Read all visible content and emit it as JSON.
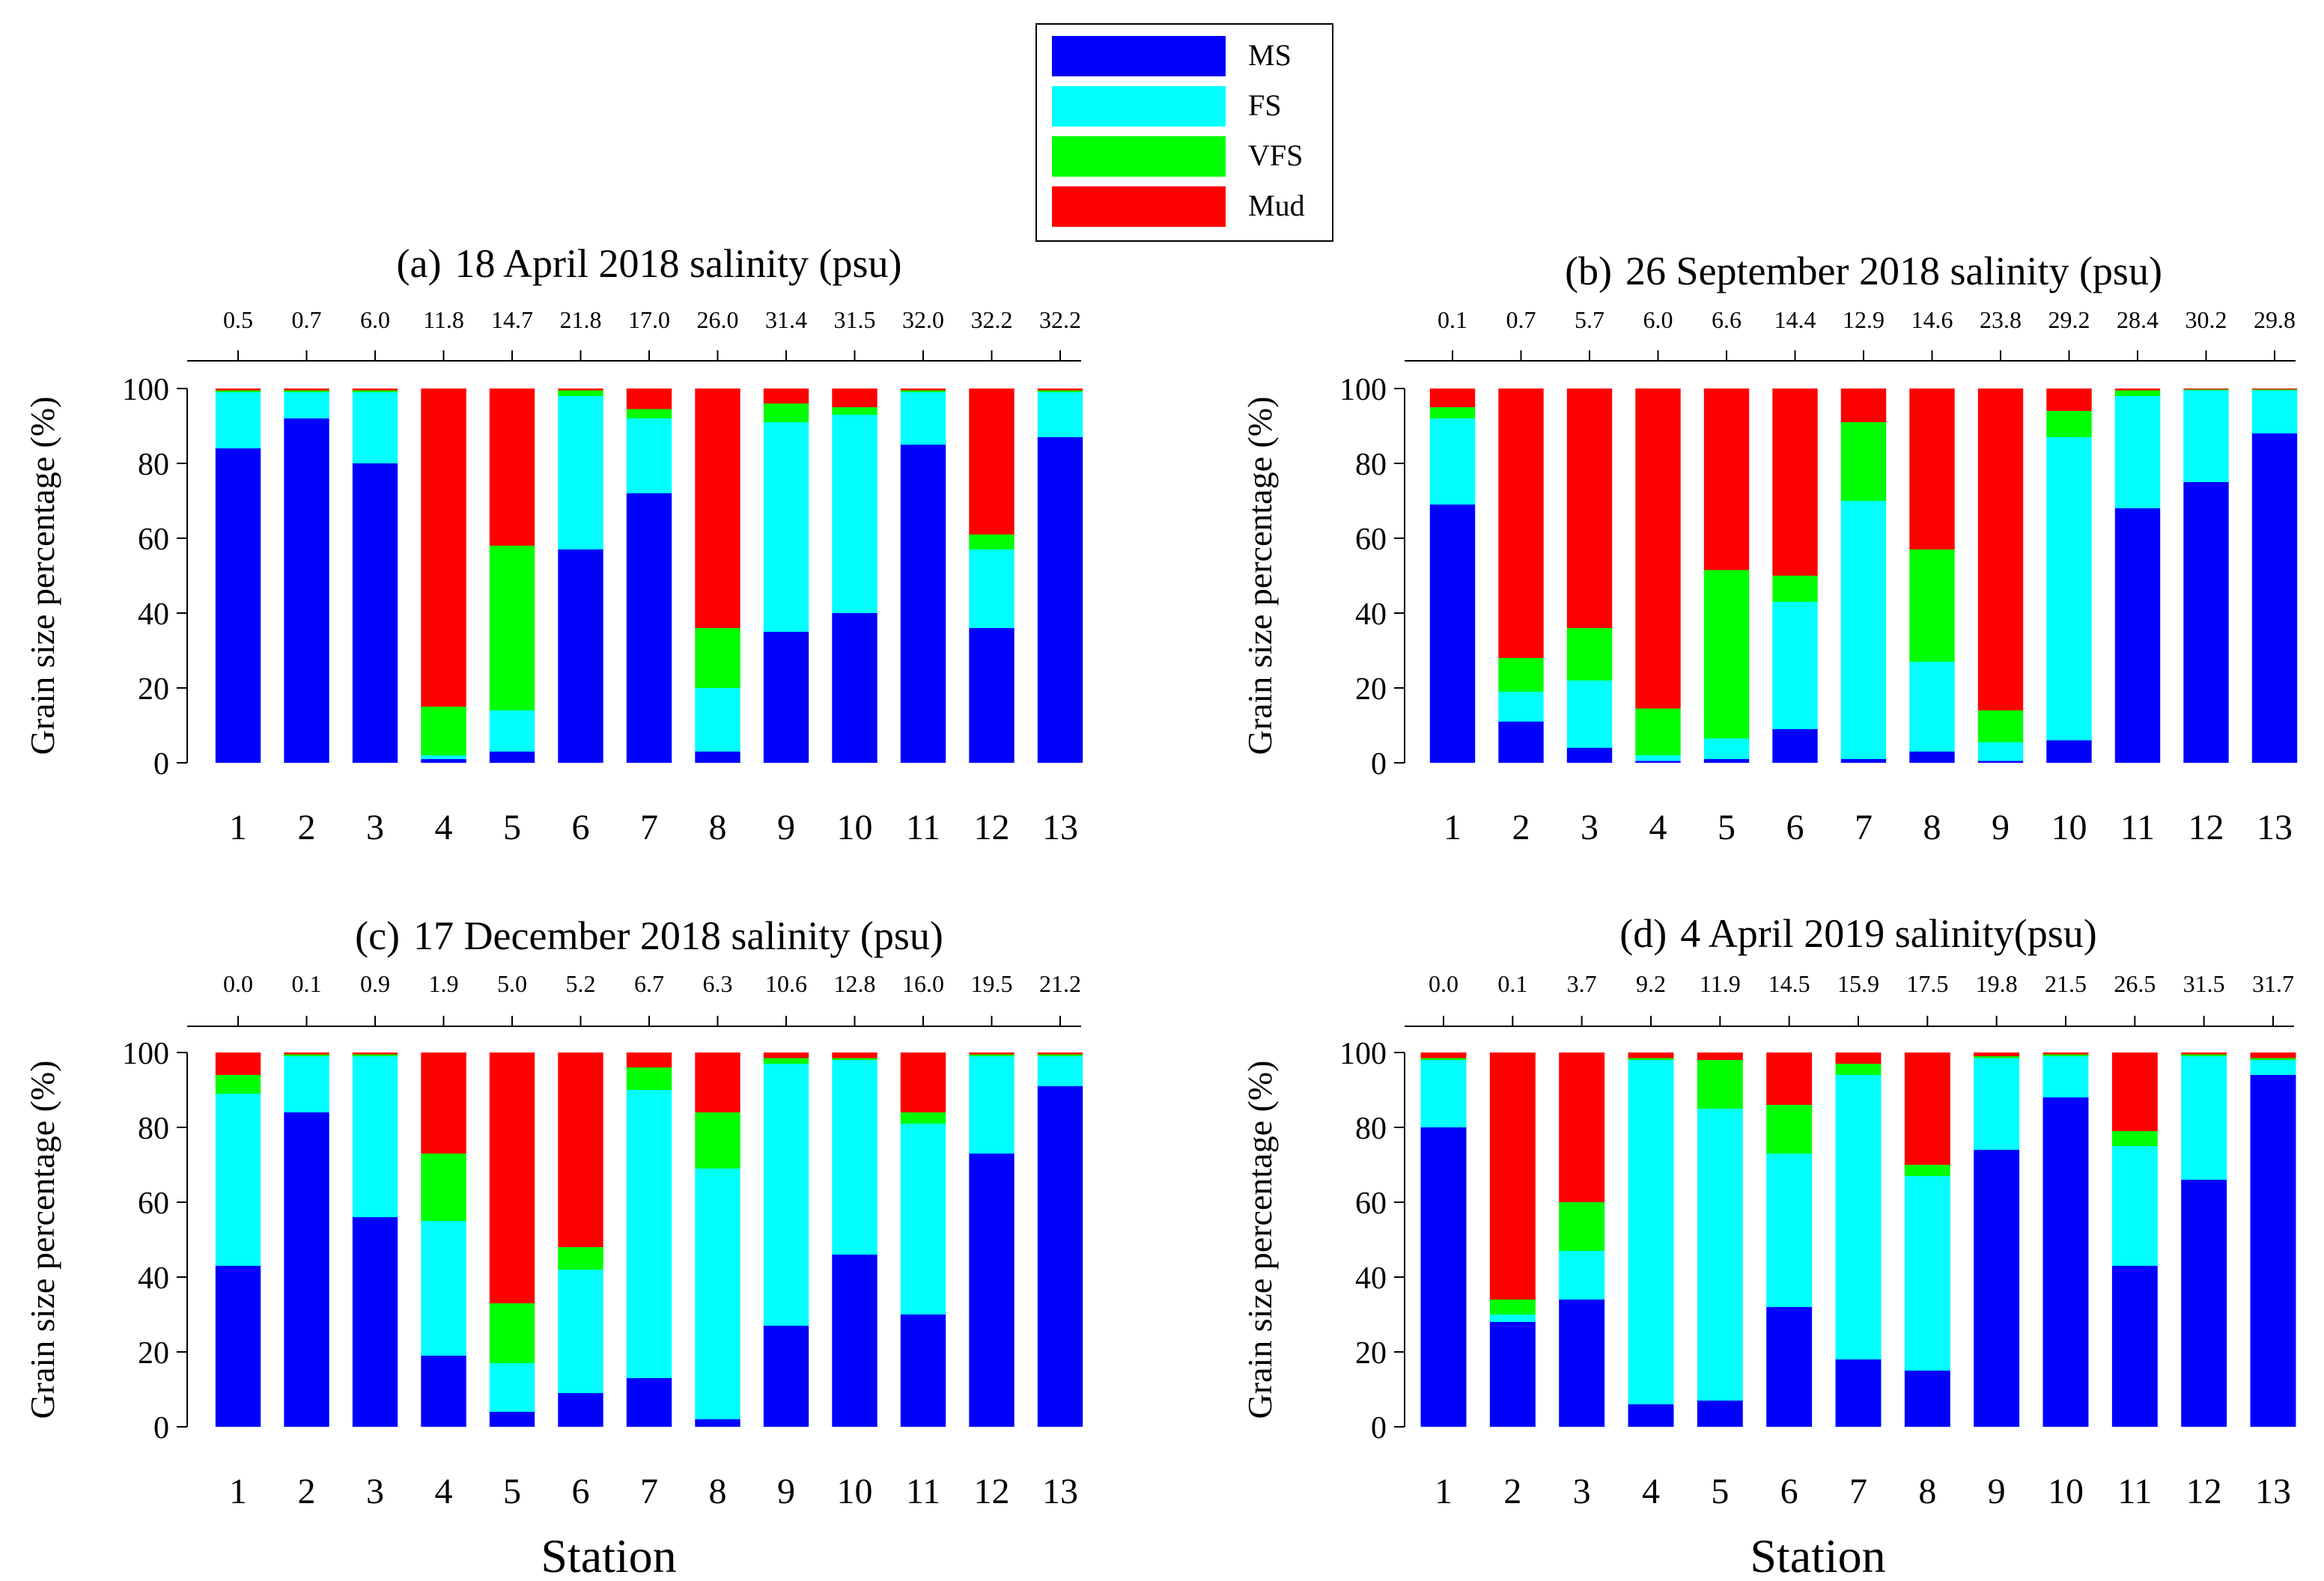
{
  "legend": {
    "items": [
      {
        "label": "MS",
        "color": "#0000ff"
      },
      {
        "label": "FS",
        "color": "#00ffff"
      },
      {
        "label": "VFS",
        "color": "#00ff00"
      },
      {
        "label": "Mud",
        "color": "#ff0000"
      }
    ]
  },
  "shared": {
    "ylabel": "Grain size percentage (%)",
    "xlabel": "Station",
    "yticks": [
      "0",
      "20",
      "40",
      "60",
      "80",
      "100"
    ],
    "stations": [
      "1",
      "2",
      "3",
      "4",
      "5",
      "6",
      "7",
      "8",
      "9",
      "10",
      "11",
      "12",
      "13"
    ]
  },
  "chart_data": [
    {
      "type": "bar",
      "stacked": true,
      "panel": "(a)",
      "title": "18 April 2018 salinity (psu)",
      "xlabel": "",
      "ylabel": "Grain size percentage (%)",
      "ylim": [
        0,
        100
      ],
      "categories": [
        "1",
        "2",
        "3",
        "4",
        "5",
        "6",
        "7",
        "8",
        "9",
        "10",
        "11",
        "12",
        "13"
      ],
      "secondary_x_labels": [
        "0.5",
        "0.7",
        "6.0",
        "11.8",
        "14.7",
        "21.8",
        "17.0",
        "26.0",
        "31.4",
        "31.5",
        "32.0",
        "32.2",
        "32.2"
      ],
      "series": [
        {
          "name": "MS",
          "values": [
            84,
            92,
            80,
            1,
            3,
            57,
            72,
            3,
            35,
            40,
            85,
            36,
            87
          ]
        },
        {
          "name": "FS",
          "values": [
            15,
            7,
            19,
            1,
            11,
            41,
            20,
            17,
            56,
            53,
            14,
            21,
            12
          ]
        },
        {
          "name": "VFS",
          "values": [
            0.5,
            0.5,
            0.5,
            13,
            44,
            1.5,
            2.5,
            16,
            5,
            2,
            0.5,
            4,
            0.5
          ]
        },
        {
          "name": "Mud",
          "values": [
            0.5,
            0.5,
            0.5,
            85,
            42,
            0.5,
            5.5,
            64,
            4,
            5,
            0.5,
            39,
            0.5
          ]
        }
      ]
    },
    {
      "type": "bar",
      "stacked": true,
      "panel": "(b)",
      "title": "26 September 2018  salinity (psu)",
      "xlabel": "",
      "ylabel": "Grain size percentage (%)",
      "ylim": [
        0,
        100
      ],
      "categories": [
        "1",
        "2",
        "3",
        "4",
        "5",
        "6",
        "7",
        "8",
        "9",
        "10",
        "11",
        "12",
        "13"
      ],
      "secondary_x_labels": [
        "0.1",
        "0.7",
        "5.7",
        "6.0",
        "6.6",
        "14.4",
        "12.9",
        "14.6",
        "23.8",
        "29.2",
        "28.4",
        "30.2",
        "29.8"
      ],
      "series": [
        {
          "name": "MS",
          "values": [
            69,
            11,
            4,
            0.5,
            1,
            9,
            1,
            3,
            0.5,
            6,
            68,
            75,
            88
          ]
        },
        {
          "name": "FS",
          "values": [
            23,
            8,
            18,
            1.5,
            5.5,
            34,
            69,
            24,
            5,
            81,
            30,
            24.5,
            11.5
          ]
        },
        {
          "name": "VFS",
          "values": [
            3,
            9,
            14,
            12.5,
            45,
            7,
            21,
            30,
            8.5,
            7,
            1.5,
            0.25,
            0.25
          ]
        },
        {
          "name": "Mud",
          "values": [
            5,
            72,
            64,
            85.5,
            48.5,
            50,
            9,
            43,
            86,
            6,
            0.5,
            0.25,
            0.25
          ]
        }
      ]
    },
    {
      "type": "bar",
      "stacked": true,
      "panel": "(c)",
      "title": "17 December 2018 salinity (psu)",
      "xlabel": "Station",
      "ylabel": "Grain size percentage (%)",
      "ylim": [
        0,
        100
      ],
      "categories": [
        "1",
        "2",
        "3",
        "4",
        "5",
        "6",
        "7",
        "8",
        "9",
        "10",
        "11",
        "12",
        "13"
      ],
      "secondary_x_labels": [
        "0.0",
        "0.1",
        "0.9",
        "1.9",
        "5.0",
        "5.2",
        "6.7",
        "6.3",
        "10.6",
        "12.8",
        "16.0",
        "19.5",
        "21.2"
      ],
      "series": [
        {
          "name": "MS",
          "values": [
            43,
            84,
            56,
            19,
            4,
            9,
            13,
            2,
            27,
            46,
            30,
            73,
            91
          ]
        },
        {
          "name": "FS",
          "values": [
            46,
            15,
            43,
            36,
            13,
            33,
            77,
            67,
            70,
            52,
            51,
            26,
            8
          ]
        },
        {
          "name": "VFS",
          "values": [
            5,
            0.5,
            0.5,
            18,
            16,
            6,
            6,
            15,
            1.5,
            0.5,
            3,
            0.5,
            0.5
          ]
        },
        {
          "name": "Mud",
          "values": [
            6,
            0.5,
            0.5,
            27,
            67,
            52,
            4,
            16,
            1.5,
            1.5,
            16,
            0.5,
            0.5
          ]
        }
      ]
    },
    {
      "type": "bar",
      "stacked": true,
      "panel": "(d)",
      "title": "4 April 2019 salinity(psu)",
      "xlabel": "Station",
      "ylabel": "Grain size percentage (%)",
      "ylim": [
        0,
        100
      ],
      "categories": [
        "1",
        "2",
        "3",
        "4",
        "5",
        "6",
        "7",
        "8",
        "9",
        "10",
        "11",
        "12",
        "13"
      ],
      "secondary_x_labels": [
        "0.0",
        "0.1",
        "3.7",
        "9.2",
        "11.9",
        "14.5",
        "15.9",
        "17.5",
        "19.8",
        "21.5",
        "26.5",
        "31.5",
        "31.7"
      ],
      "series": [
        {
          "name": "MS",
          "values": [
            80,
            28,
            34,
            6,
            7,
            32,
            18,
            15,
            74,
            88,
            43,
            66,
            94
          ]
        },
        {
          "name": "FS",
          "values": [
            18,
            2,
            13,
            92,
            78,
            41,
            76,
            52,
            24.5,
            11,
            32,
            33,
            4
          ]
        },
        {
          "name": "VFS",
          "values": [
            0.5,
            4,
            13,
            0.5,
            13,
            13,
            3,
            3,
            0.5,
            0.5,
            4,
            0.5,
            0.5
          ]
        },
        {
          "name": "Mud",
          "values": [
            1.5,
            66,
            40,
            1.5,
            2,
            14,
            3,
            30,
            1,
            0.5,
            21,
            0.5,
            1.5
          ]
        }
      ]
    }
  ]
}
